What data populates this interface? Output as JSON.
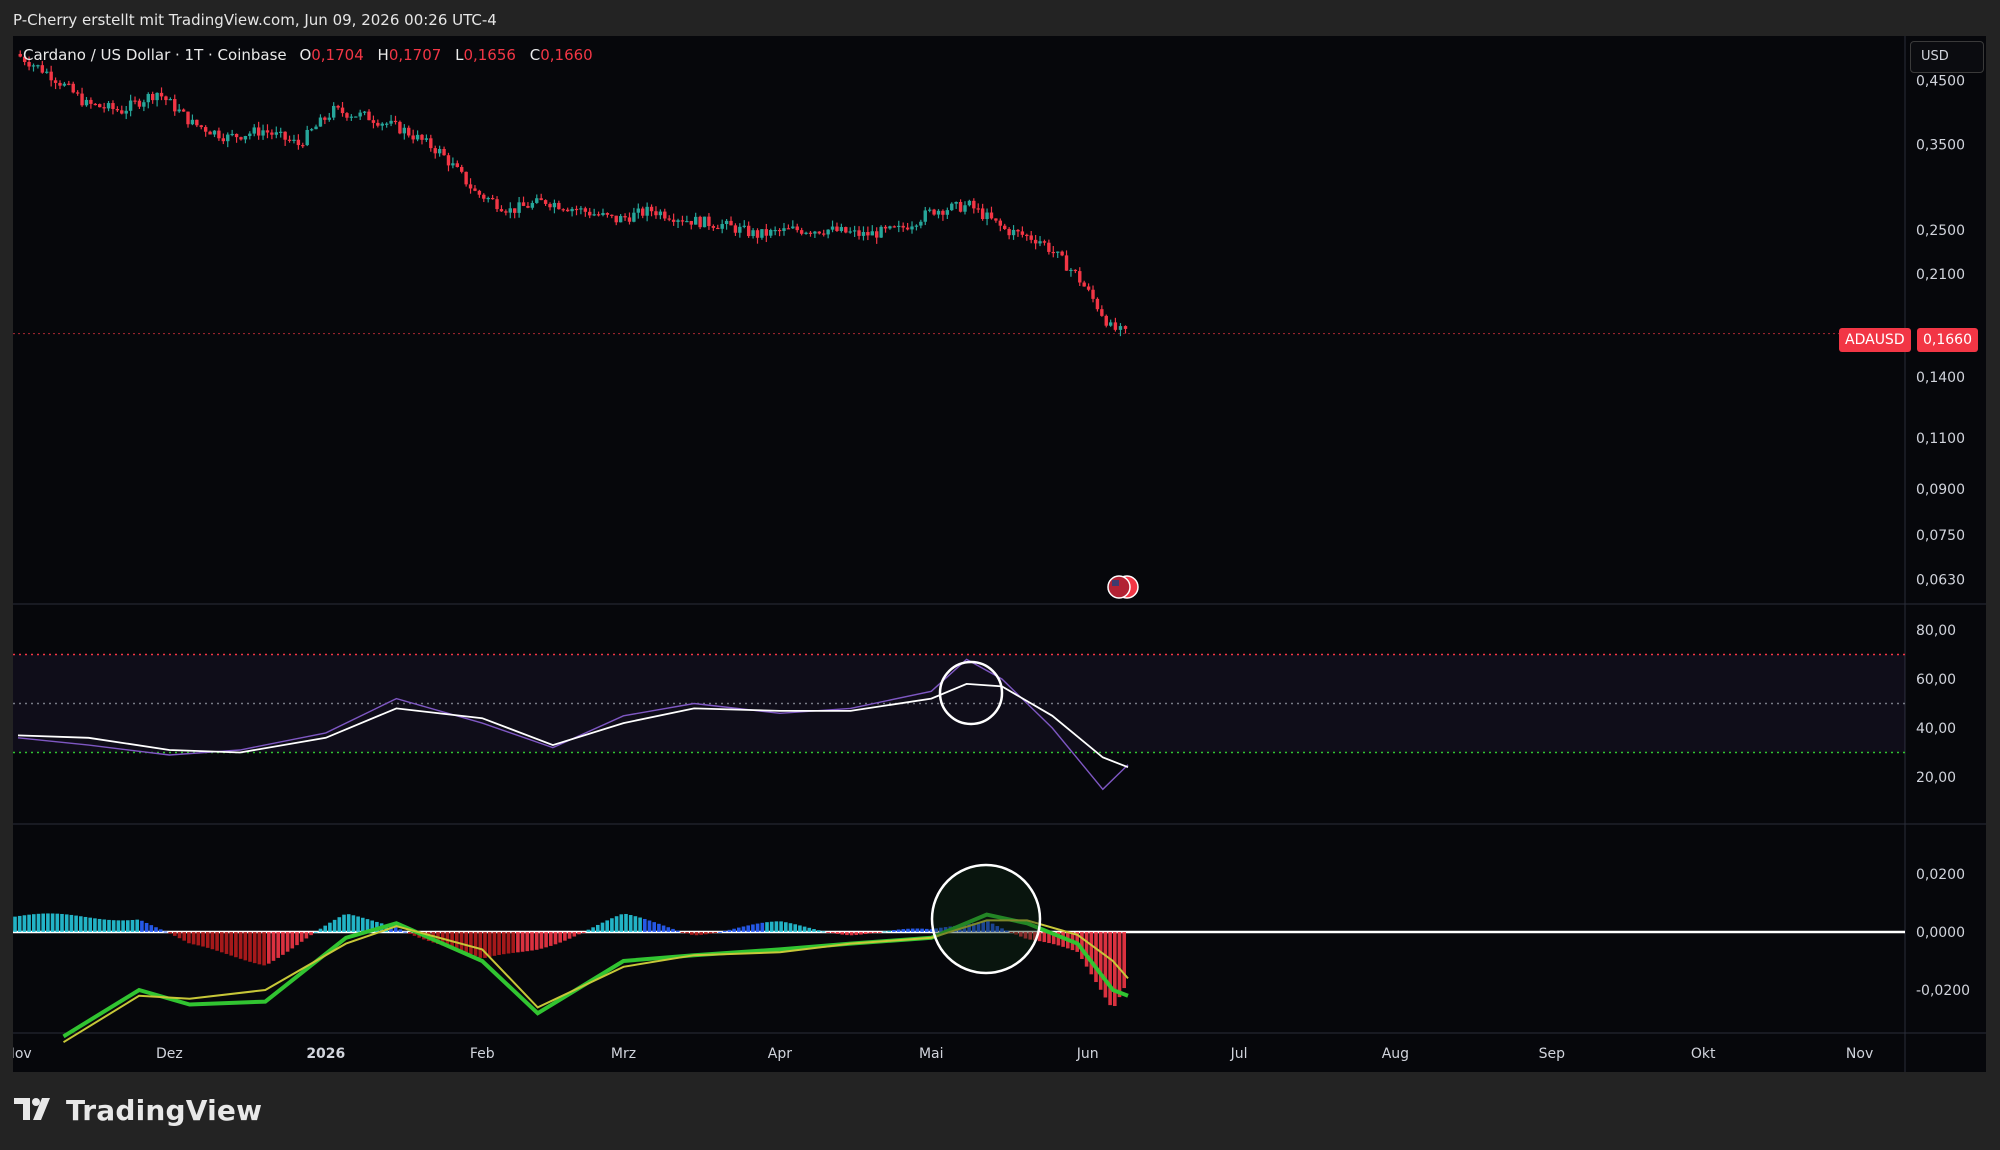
{
  "header": {
    "credit": "P-Cherry erstellt mit TradingView.com, Jun 09, 2026 00:26 UTC-4"
  },
  "legend": {
    "symbol": "Cardano / US Dollar · 1T · Coinbase",
    "open_label": "O",
    "open": "0,1704",
    "high_label": "H",
    "high": "0,1707",
    "low_label": "L",
    "low": "0,1656",
    "close_label": "C",
    "close": "0,1660"
  },
  "currency_button": "USD",
  "price_tag": {
    "symbol": "ADAUSD",
    "value": "0,1660"
  },
  "brand": {
    "name": "TradingView"
  },
  "colors": {
    "up": "#26a69a",
    "down": "#f23645",
    "background": "#06070b",
    "rsi": "#7e57c2",
    "rsi_ma": "#ffffff",
    "macd": "#31c431",
    "signal": "#c7c738"
  },
  "chart_data": [
    {
      "type": "candlestick",
      "title": "Cardano / US Dollar · 1T · Coinbase",
      "scale": "log",
      "x": [
        "2025-11-01",
        "2025-11-08",
        "2025-11-15",
        "2025-11-22",
        "2025-11-29",
        "2025-12-06",
        "2025-12-13",
        "2025-12-20",
        "2025-12-27",
        "2026-01-03",
        "2026-01-10",
        "2026-01-17",
        "2026-01-24",
        "2026-01-31",
        "2026-02-07",
        "2026-02-14",
        "2026-02-21",
        "2026-02-28",
        "2026-03-07",
        "2026-03-14",
        "2026-03-21",
        "2026-03-28",
        "2026-04-04",
        "2026-04-11",
        "2026-04-18",
        "2026-04-25",
        "2026-05-02",
        "2026-05-09",
        "2026-05-16",
        "2026-05-23",
        "2026-05-30",
        "2026-06-06",
        "2026-06-09"
      ],
      "close": [
        0.5,
        0.46,
        0.41,
        0.4,
        0.43,
        0.38,
        0.36,
        0.37,
        0.35,
        0.4,
        0.39,
        0.37,
        0.34,
        0.29,
        0.27,
        0.28,
        0.27,
        0.26,
        0.27,
        0.26,
        0.255,
        0.245,
        0.25,
        0.25,
        0.245,
        0.25,
        0.27,
        0.275,
        0.25,
        0.24,
        0.21,
        0.17,
        0.166
      ],
      "y_ticks": [
        "0,4500",
        "0,3500",
        "0,2500",
        "0,2100",
        "0,1400",
        "0,1100",
        "0,0900",
        "0,0750",
        "0,0630"
      ],
      "last_price": "0,1660",
      "last_price_label": "ADAUSD"
    },
    {
      "type": "line",
      "name": "RSI",
      "x": [
        "2025-11-01",
        "2025-11-15",
        "2025-12-01",
        "2025-12-15",
        "2026-01-01",
        "2026-01-15",
        "2026-02-01",
        "2026-02-15",
        "2026-03-01",
        "2026-03-15",
        "2026-04-01",
        "2026-04-15",
        "2026-05-01",
        "2026-05-08",
        "2026-05-15",
        "2026-05-25",
        "2026-06-04",
        "2026-06-09"
      ],
      "series": [
        {
          "values": [
            36,
            33,
            29,
            31,
            38,
            52,
            42,
            32,
            45,
            50,
            46,
            48,
            55,
            68,
            60,
            40,
            15,
            25
          ]
        },
        {
          "values": [
            37,
            36,
            31,
            30,
            36,
            48,
            44,
            33,
            42,
            48,
            47,
            47,
            52,
            58,
            57,
            45,
            28,
            24
          ]
        }
      ],
      "levels": [
        70,
        50,
        30
      ],
      "y_ticks": [
        "80,00",
        "60,00",
        "40,00",
        "20,00"
      ]
    },
    {
      "type": "line",
      "name": "MACD",
      "x": [
        "2025-11-10",
        "2025-11-25",
        "2025-12-05",
        "2025-12-20",
        "2026-01-05",
        "2026-01-15",
        "2026-02-01",
        "2026-02-12",
        "2026-03-01",
        "2026-03-15",
        "2026-04-01",
        "2026-04-15",
        "2026-05-01",
        "2026-05-12",
        "2026-05-20",
        "2026-05-30",
        "2026-06-06",
        "2026-06-09"
      ],
      "series": [
        {
          "values": [
            -0.036,
            -0.02,
            -0.025,
            -0.024,
            -0.002,
            0.003,
            -0.01,
            -0.028,
            -0.01,
            -0.008,
            -0.006,
            -0.004,
            -0.002,
            0.006,
            0.003,
            -0.004,
            -0.02,
            -0.022
          ]
        },
        {
          "values": [
            -0.038,
            -0.022,
            -0.023,
            -0.02,
            -0.004,
            0.002,
            -0.006,
            -0.026,
            -0.012,
            -0.008,
            -0.007,
            -0.004,
            -0.002,
            0.004,
            0.004,
            -0.001,
            -0.01,
            -0.016
          ]
        }
      ],
      "zero_line": 0,
      "y_ticks": [
        "0,0200",
        "0,0000",
        "-0,0200"
      ]
    }
  ],
  "x_axis": [
    "Nov",
    "Dez",
    "2026",
    "Feb",
    "Mrz",
    "Apr",
    "Mai",
    "Jun",
    "Jul",
    "Aug",
    "Sep",
    "Okt",
    "Nov"
  ]
}
